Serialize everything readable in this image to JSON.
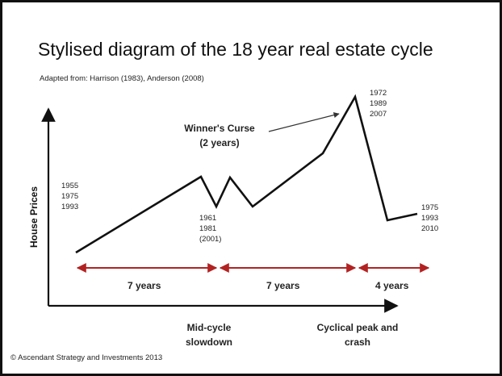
{
  "title": "Stylised diagram of the  18 year real estate cycle",
  "subtitle": "Adapted from: Harrison (1983), Anderson (2008)",
  "y_axis_label": "House Prices",
  "annotation": {
    "line1": "Winner's Curse",
    "line2": "(2 years)"
  },
  "point_labels": {
    "start": [
      "1955",
      "1975",
      "1993"
    ],
    "mid_dip": [
      "1961",
      "1981",
      "(2001)"
    ],
    "peak": [
      "1972",
      "1989",
      "2007"
    ],
    "end": [
      "1975",
      "1993",
      "2010"
    ]
  },
  "durations": [
    "7 years",
    "7 years",
    "4 years"
  ],
  "phases": {
    "midcycle_line1": "Mid-cycle",
    "midcycle_line2": "slowdown",
    "peak_line1": "Cyclical peak and",
    "peak_line2": "crash"
  },
  "copyright": "© Ascendant Strategy and Investments 2013",
  "colors": {
    "line": "#111111",
    "arrows": "#b22222"
  },
  "icons": [
    "arrow-right-icon",
    "arrow-up-icon"
  ]
}
